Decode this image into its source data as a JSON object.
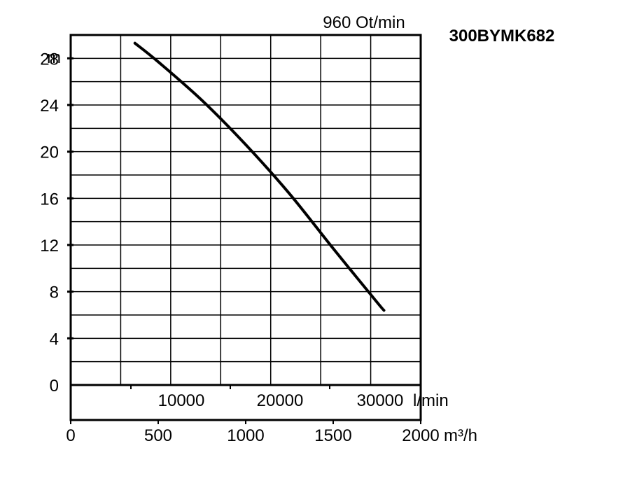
{
  "chart_data": {
    "type": "line",
    "model": "300BYMK682",
    "speed_label": "960 Ot/min",
    "y_unit": "m",
    "y_ticks": [
      "0",
      "4",
      "8",
      "12",
      "16",
      "20",
      "24",
      "28"
    ],
    "ylim": [
      0,
      30
    ],
    "x_lmin": {
      "unit": "l/min",
      "ticks": [
        "10000",
        "20000",
        "30000"
      ]
    },
    "x_m3h": {
      "unit": "m³/h",
      "ticks": [
        "0",
        "500",
        "1000",
        "1500",
        "2000"
      ],
      "xlim": [
        0,
        2000
      ]
    },
    "grid": true,
    "series": [
      {
        "x": [
          367,
          500,
          750,
          1000,
          1250,
          1500,
          1750,
          1790
        ],
        "y": [
          29.3,
          27.7,
          24.4,
          20.6,
          16.4,
          11.7,
          7.1,
          6.4
        ]
      }
    ]
  }
}
